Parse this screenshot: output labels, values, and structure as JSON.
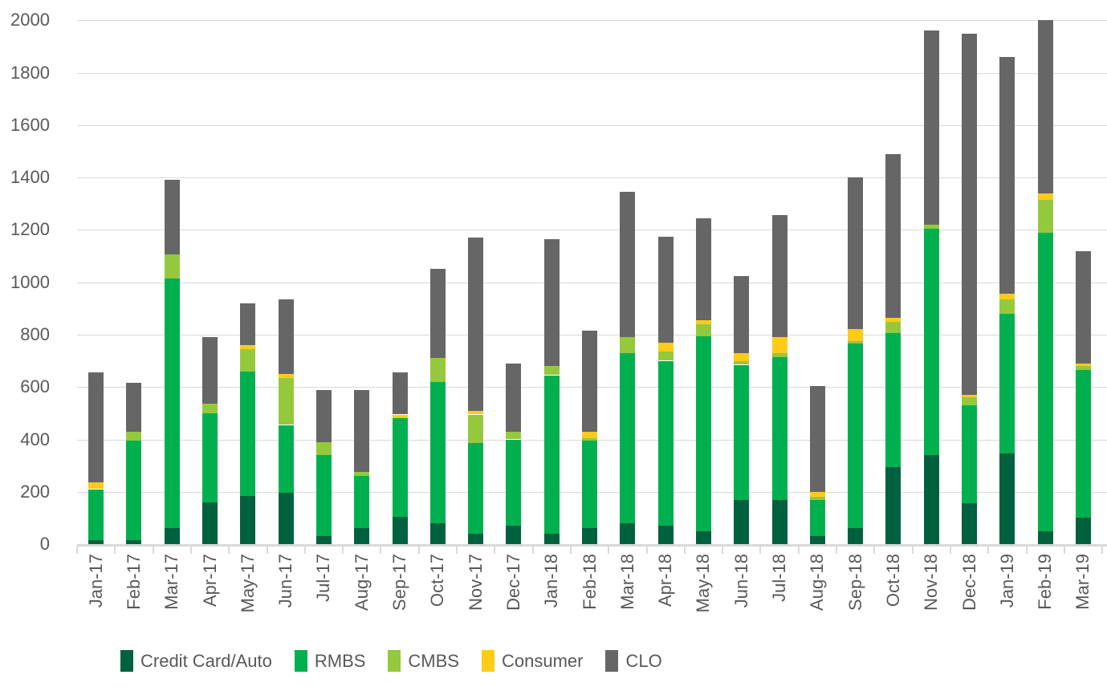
{
  "chart_data": {
    "type": "bar",
    "stacked": true,
    "title": "",
    "xlabel": "",
    "ylabel": "",
    "ylim": [
      0,
      2000
    ],
    "y_ticks": [
      0,
      200,
      400,
      600,
      800,
      1000,
      1200,
      1400,
      1600,
      1800,
      2000
    ],
    "grid": "horizontal",
    "legend_position": "bottom-left",
    "categories": [
      "Jan-17",
      "Feb-17",
      "Mar-17",
      "Apr-17",
      "May-17",
      "Jun-17",
      "Jul-17",
      "Aug-17",
      "Sep-17",
      "Oct-17",
      "Nov-17",
      "Dec-17",
      "Jan-18",
      "Feb-18",
      "Mar-18",
      "Apr-18",
      "May-18",
      "Jun-18",
      "Jul-18",
      "Aug-18",
      "Sep-18",
      "Oct-18",
      "Nov-18",
      "Dec-18",
      "Jan-19",
      "Feb-19",
      "Mar-19"
    ],
    "series": [
      {
        "name": "Credit Card/Auto",
        "color": "#00613E",
        "values": [
          15,
          15,
          60,
          160,
          185,
          195,
          30,
          60,
          105,
          80,
          40,
          70,
          40,
          60,
          80,
          70,
          50,
          170,
          170,
          30,
          60,
          295,
          340,
          155,
          345,
          50,
          100
        ]
      },
      {
        "name": "RMBS",
        "color": "#00B04F",
        "values": [
          195,
          380,
          955,
          340,
          475,
          260,
          310,
          200,
          375,
          540,
          345,
          330,
          605,
          335,
          650,
          630,
          745,
          515,
          545,
          140,
          705,
          510,
          865,
          375,
          535,
          1140,
          565
        ]
      },
      {
        "name": "CMBS",
        "color": "#95C93D",
        "values": [
          0,
          35,
          90,
          35,
          85,
          180,
          50,
          15,
          0,
          90,
          110,
          30,
          35,
          10,
          60,
          35,
          45,
          15,
          15,
          10,
          10,
          45,
          15,
          30,
          55,
          125,
          15
        ]
      },
      {
        "name": "Consumer",
        "color": "#FFCB1B",
        "values": [
          25,
          0,
          0,
          0,
          15,
          15,
          0,
          0,
          15,
          0,
          15,
          0,
          0,
          25,
          0,
          35,
          15,
          30,
          60,
          20,
          45,
          15,
          0,
          10,
          20,
          25,
          10
        ]
      },
      {
        "name": "CLO",
        "color": "#666666",
        "values": [
          420,
          185,
          285,
          255,
          160,
          285,
          200,
          315,
          160,
          340,
          660,
          260,
          485,
          385,
          555,
          405,
          390,
          295,
          465,
          405,
          580,
          625,
          740,
          1380,
          905,
          660,
          430
        ]
      }
    ]
  },
  "colors": {
    "axis_text": "#595959",
    "gridline": "#D9D9D9",
    "axis_line": "#D9D9D9",
    "background": "#FFFFFF"
  }
}
